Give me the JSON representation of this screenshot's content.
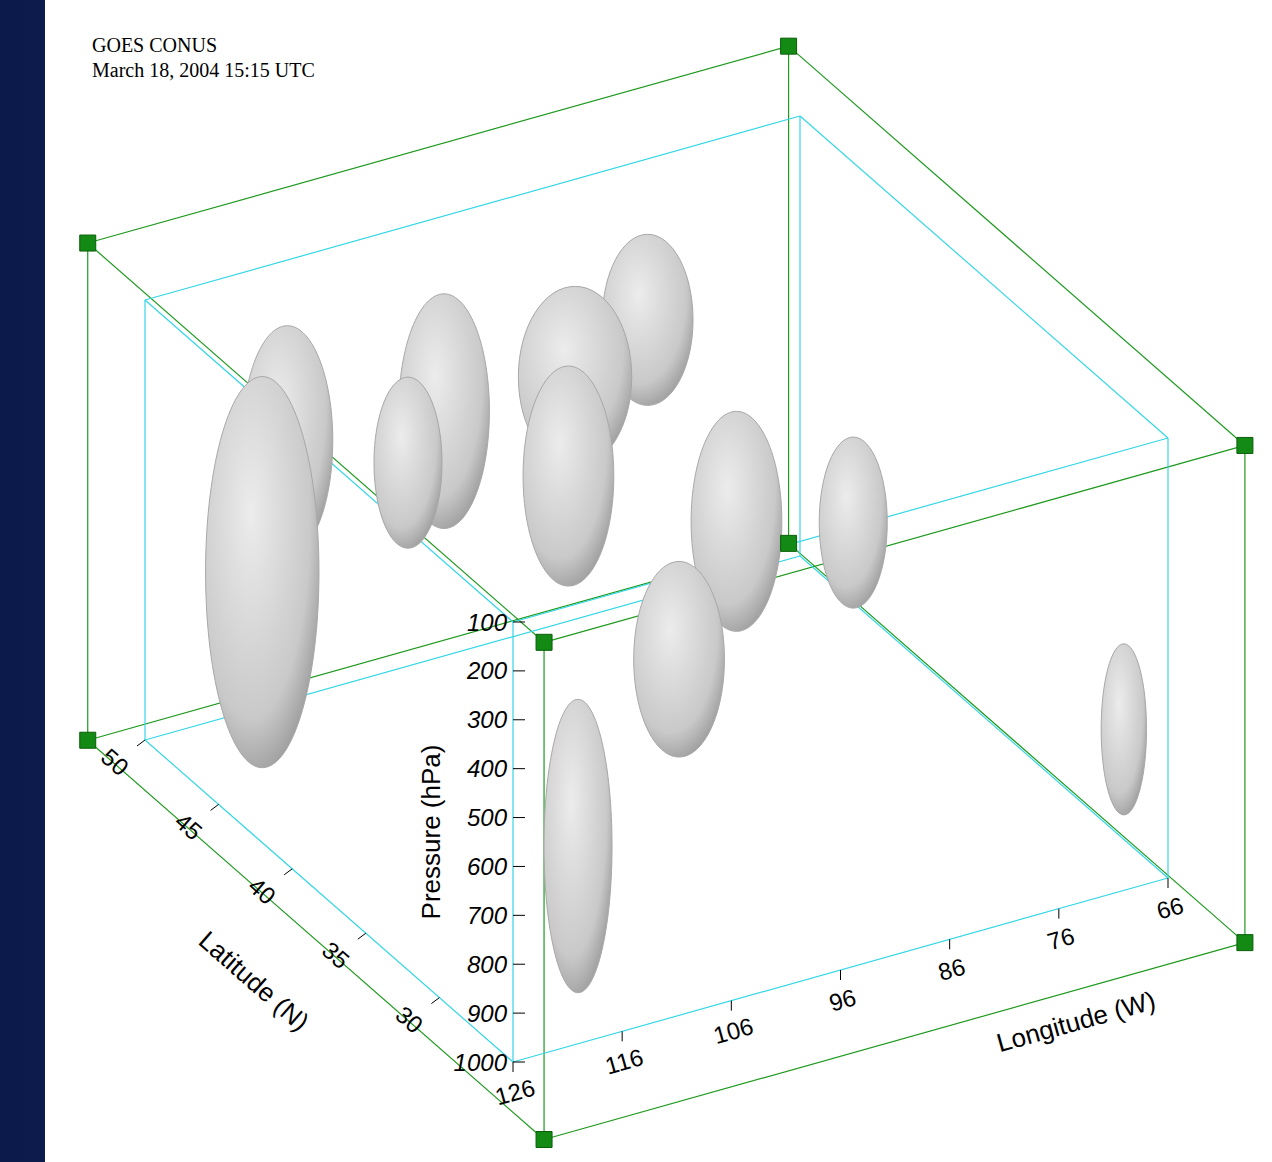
{
  "chart_data": {
    "type": "3d_isosurface",
    "title": "GOES CONUS",
    "subtitle": "March 18, 2004 15:15 UTC",
    "x_label": "Longitude (W)",
    "y_label": "Latitude (N)",
    "z_label": "Pressure (hPa)",
    "xlim": [
      126,
      66
    ],
    "xticks": [
      126,
      116,
      106,
      96,
      86,
      76,
      66
    ],
    "ylim": [
      25,
      50
    ],
    "yticks": [
      30,
      35,
      40,
      45,
      50
    ],
    "zlim": [
      1000,
      100
    ],
    "zticks": [
      100,
      200,
      300,
      400,
      500,
      600,
      700,
      800,
      900,
      1000
    ],
    "color": "#ececec",
    "clouds": [
      {
        "lon": 84,
        "lat": 47,
        "p_top": 150,
        "p_bottom": 500,
        "half_width": 4
      },
      {
        "lon": 117,
        "lat": 47,
        "p_top": 130,
        "p_bottom": 600,
        "half_width": 4
      },
      {
        "lon": 104,
        "lat": 46,
        "p_top": 120,
        "p_bottom": 600,
        "half_width": 4
      },
      {
        "lon": 92,
        "lat": 46,
        "p_top": 180,
        "p_bottom": 550,
        "half_width": 5
      },
      {
        "lon": 122,
        "lat": 45,
        "p_top": 150,
        "p_bottom": 950,
        "half_width": 5
      },
      {
        "lon": 110,
        "lat": 44,
        "p_top": 200,
        "p_bottom": 550,
        "half_width": 3
      },
      {
        "lon": 98,
        "lat": 42,
        "p_top": 200,
        "p_bottom": 650,
        "half_width": 4
      },
      {
        "lon": 88,
        "lat": 38,
        "p_top": 250,
        "p_bottom": 700,
        "half_width": 4
      },
      {
        "lon": 80,
        "lat": 36,
        "p_top": 300,
        "p_bottom": 650,
        "half_width": 3
      },
      {
        "lon": 100,
        "lat": 33,
        "p_top": 350,
        "p_bottom": 750,
        "half_width": 4
      },
      {
        "lon": 116,
        "lat": 28,
        "p_top": 400,
        "p_bottom": 1000,
        "half_width": 3
      },
      {
        "lon": 66,
        "lat": 28,
        "p_top": 600,
        "p_bottom": 950,
        "half_width": 2
      }
    ]
  }
}
